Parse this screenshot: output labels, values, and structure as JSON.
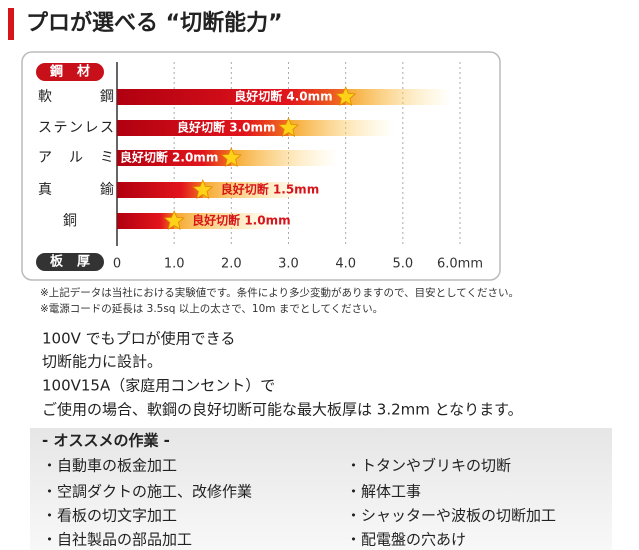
{
  "chart_data": {
    "type": "hbar",
    "title": "プロが選べる “切断能力”",
    "y_axis_label": "鋼材",
    "x_axis_label": "板厚",
    "categories": [
      "軟鋼",
      "ステンレス",
      "アルミ",
      "真鍮",
      "銅"
    ],
    "values": [
      4.0,
      3.0,
      2.0,
      1.5,
      1.0
    ],
    "value_labels": [
      "良好切断 4.0mm",
      "良好切断 3.0mm",
      "良好切断 2.0mm",
      "良好切断 1.5mm",
      "良好切断 1.0mm"
    ],
    "color": "#d7141a",
    "xlim": [
      0,
      6.0
    ],
    "xticks": [
      0,
      {
        "value": 1,
        "label": "1.0"
      },
      {
        "value": 2,
        "label": "2.0"
      },
      {
        "value": 3,
        "label": "3.0"
      },
      {
        "value": 4,
        "label": "4.0"
      },
      {
        "value": 5,
        "label": "5.0"
      },
      {
        "value": 6,
        "label": "6.0mm"
      }
    ],
    "grid": true
  },
  "notes": [
    "※上記データは当社における実験値です。条件により多少変動がありますので、目安としてください。",
    "※電源コードの延長は 3.5sq 以上の太さで、10m までとしてください。"
  ],
  "description": [
    "100V でもプロが使用できる",
    "切断能力に設計。",
    "100V15A（家庭用コンセント）で",
    "ご使用の場合、軟鋼の良好切断可能な最大板厚は 3.2mm となります。"
  ],
  "recommend": {
    "heading": "- オススメの作業 -",
    "left": [
      "・自動車の板金加工",
      "・空調ダクトの施工、改修作業",
      "・看板の切文字加工",
      "・自社製品の部品加工"
    ],
    "right": [
      "・トタンやブリキの切断",
      "・解体工事",
      "・シャッターや波板の切断加工",
      "・配電盤の穴あけ"
    ]
  }
}
